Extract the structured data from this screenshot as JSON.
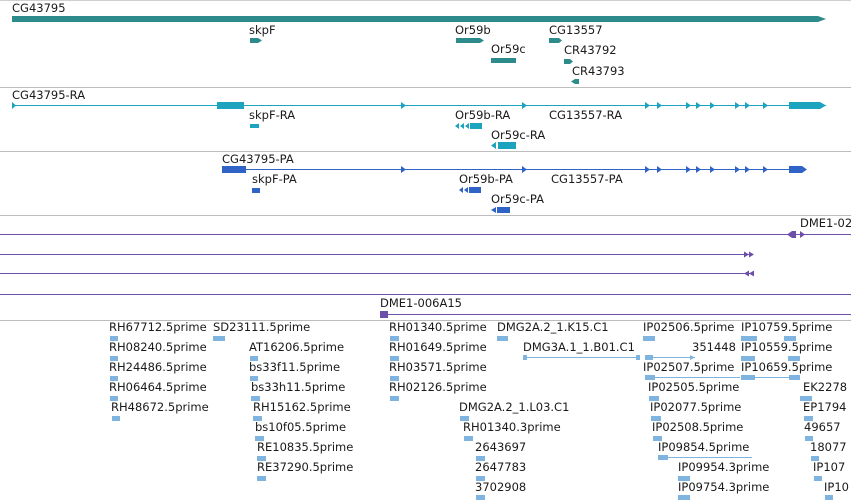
{
  "colors": {
    "gene": "#2e8b8b",
    "transcript": "#1ca3be",
    "protein": "#2f63c6",
    "alignment": "#6b4fa8",
    "est": "#7fb4e0",
    "divider": "#bdbdbd"
  },
  "tracks": {
    "genes": {
      "main_label": "CG43795",
      "features": [
        "skpF",
        "Or59b",
        "Or59c",
        "CG13557",
        "CR43792",
        "CR43793"
      ]
    },
    "transcripts": {
      "main_label": "CG43795-RA",
      "features": [
        "skpF-RA",
        "Or59b-RA",
        "Or59c-RA",
        "CG13557-RA"
      ]
    },
    "proteins": {
      "main_label": "CG43795-PA",
      "features": [
        "skpF-PA",
        "Or59b-PA",
        "Or59c-PA",
        "CG13557-PA"
      ]
    },
    "alignments": {
      "labels": [
        "DME1-02",
        "DME1-006A15"
      ]
    },
    "ests": {
      "labels": [
        "RH67712.5prime",
        "SD23111.5prime",
        "RH08240.5prime",
        "AT16206.5prime",
        "RH24486.5prime",
        "bs33f11.5prime",
        "RH06464.5prime",
        "bs33h11.5prime",
        "RH48672.5prime",
        "RH15162.5prime",
        "bs10f05.5prime",
        "RE10835.5prime",
        "RE37290.5prime",
        "RH01340.5prime",
        "DMG2A.2_1.K15.C1",
        "RH01649.5prime",
        "DMG3A.1_1.B01.C1",
        "RH03571.5prime",
        "RH02126.5prime",
        "DMG2A.2_1.L03.C1",
        "RH01340.3prime",
        "2643697",
        "2647783",
        "3702908",
        "IP02506.5prime",
        "IP10759.5prime",
        "351448",
        "IP10559.5prime",
        "IP02507.5prime",
        "IP10659.5prime",
        "EK2278",
        "IP02505.5prime",
        "IP02077.5prime",
        "EP1794",
        "IP02508.5prime",
        "49657",
        "IP09854.5prime",
        "18077",
        "IP09954.3prime",
        "IP107",
        "IP09754.3prime",
        "IP10"
      ]
    }
  }
}
